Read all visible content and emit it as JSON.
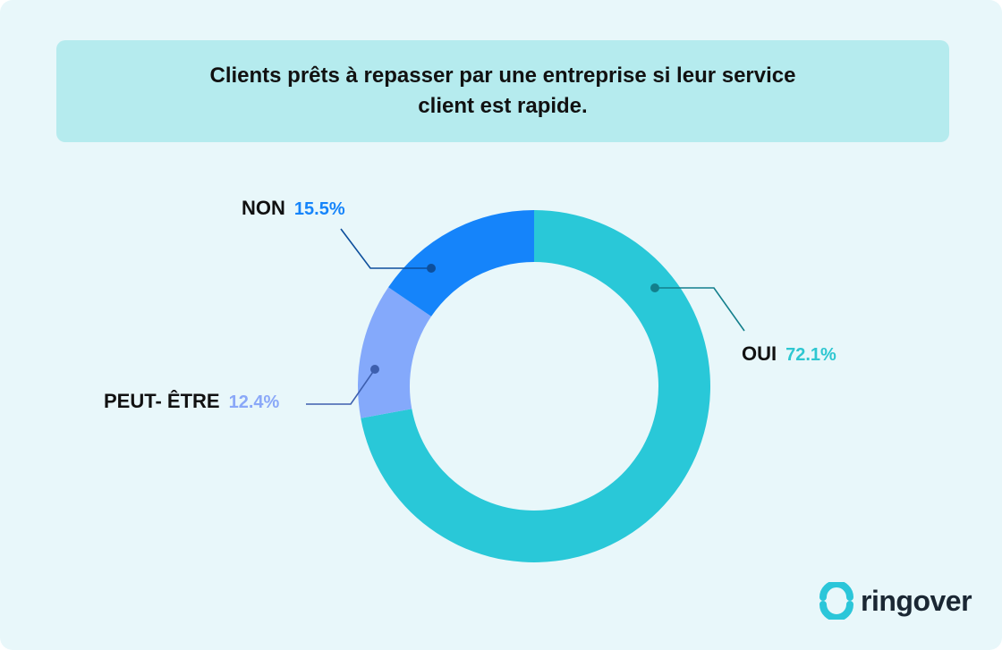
{
  "title": "Clients prêts à repasser par une entreprise si leur service client est rapide.",
  "brand": {
    "name": "ringover",
    "logo_icon": "ringover-logo-icon",
    "color": "#2bc6d9"
  },
  "chart_data": {
    "type": "pie",
    "donut": true,
    "title": "Clients prêts à repasser par une entreprise si leur service client est rapide.",
    "slices": [
      {
        "label": "OUI",
        "value": 72.1,
        "value_label": "72.1%",
        "color": "#29c8d8",
        "label_color": "#2ec7d1"
      },
      {
        "label": "PEUT- ÊTRE",
        "value": 12.4,
        "value_label": "12.4%",
        "color": "#84a9fb",
        "label_color": "#8aa8f8"
      },
      {
        "label": "NON",
        "value": 15.5,
        "value_label": "15.5%",
        "color": "#1584fa",
        "label_color": "#1584fa"
      }
    ],
    "start_angle_deg": 0,
    "direction": "clockwise",
    "legend": "none"
  }
}
